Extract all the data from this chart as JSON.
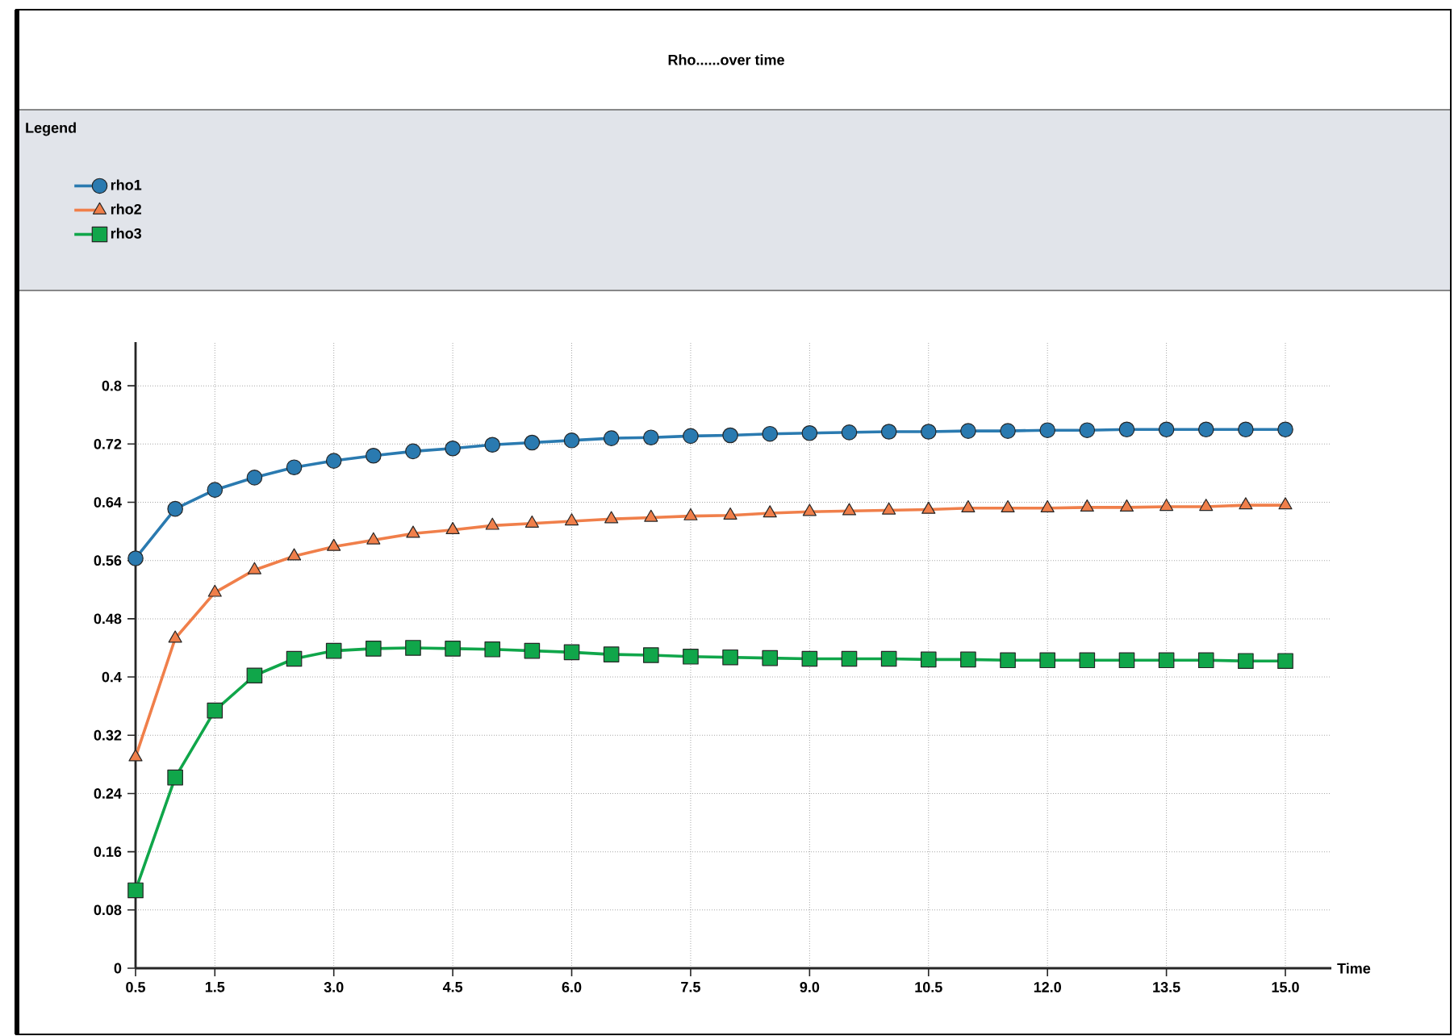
{
  "chart_data": {
    "type": "line",
    "title": "Rho......over time",
    "xlabel": "Time",
    "legend_title": "Legend",
    "x": [
      0.5,
      1.0,
      1.5,
      2.0,
      2.5,
      3.0,
      3.5,
      4.0,
      4.5,
      5.0,
      5.5,
      6.0,
      6.5,
      7.0,
      7.5,
      8.0,
      8.5,
      9.0,
      9.5,
      10.0,
      10.5,
      11.0,
      11.5,
      12.0,
      12.5,
      13.0,
      13.5,
      14.0,
      14.5,
      15.0
    ],
    "series": [
      {
        "name": "rho1",
        "color": "#2a7ab0",
        "marker": "circle",
        "values": [
          0.563,
          0.631,
          0.657,
          0.674,
          0.688,
          0.697,
          0.704,
          0.71,
          0.714,
          0.719,
          0.722,
          0.725,
          0.728,
          0.729,
          0.731,
          0.732,
          0.734,
          0.735,
          0.736,
          0.737,
          0.737,
          0.738,
          0.738,
          0.739,
          0.739,
          0.74,
          0.74,
          0.74,
          0.74,
          0.74
        ]
      },
      {
        "name": "rho2",
        "color": "#f07f4a",
        "marker": "triangle",
        "values": [
          0.29,
          0.453,
          0.516,
          0.547,
          0.566,
          0.579,
          0.588,
          0.597,
          0.602,
          0.608,
          0.611,
          0.614,
          0.617,
          0.619,
          0.621,
          0.622,
          0.625,
          0.627,
          0.628,
          0.629,
          0.63,
          0.632,
          0.632,
          0.632,
          0.633,
          0.633,
          0.634,
          0.634,
          0.636,
          0.636
        ]
      },
      {
        "name": "rho3",
        "color": "#10a64a",
        "marker": "square",
        "values": [
          0.107,
          0.262,
          0.354,
          0.402,
          0.425,
          0.436,
          0.439,
          0.44,
          0.439,
          0.438,
          0.436,
          0.434,
          0.431,
          0.43,
          0.428,
          0.427,
          0.426,
          0.425,
          0.425,
          0.425,
          0.424,
          0.424,
          0.423,
          0.423,
          0.423,
          0.423,
          0.423,
          0.423,
          0.422,
          0.422
        ]
      }
    ],
    "xlim": [
      0.5,
      15.58
    ],
    "ylim": [
      0,
      0.86
    ],
    "xticks": [
      0.5,
      1.5,
      {
        "value": 3,
        "label": "3.0"
      },
      4.5,
      {
        "value": 6,
        "label": "6.0"
      },
      7.5,
      {
        "value": 9,
        "label": "9.0"
      },
      10.5,
      {
        "value": 12,
        "label": "12.0"
      },
      13.5,
      {
        "value": 15,
        "label": "15.0"
      }
    ],
    "yticks": [
      0,
      0.08,
      0.16,
      0.24,
      0.32,
      0.4,
      0.48,
      0.56,
      0.64,
      0.72,
      0.8
    ],
    "grid": true,
    "legend": "top left",
    "line_style": "solid"
  }
}
